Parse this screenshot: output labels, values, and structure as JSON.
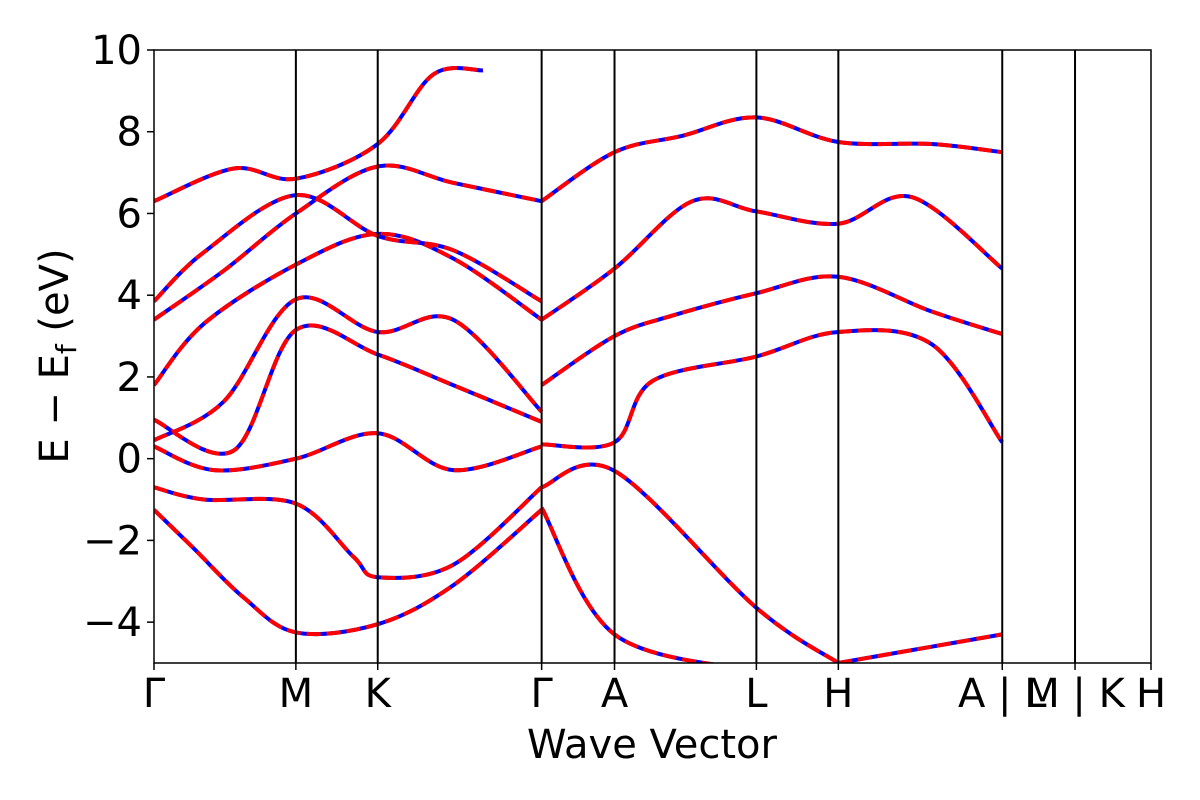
{
  "chart_data": {
    "type": "line",
    "title": "",
    "xlabel": "Wave Vector",
    "ylabel": "E − E_f (eV)",
    "ylabel_main": "E − E",
    "ylabel_sub": "f",
    "ylabel_unit": " (eV)",
    "ylim": [
      -5,
      10
    ],
    "yticks": [
      -4,
      -2,
      0,
      2,
      4,
      6,
      8,
      10
    ],
    "ytick_labels": [
      "−4",
      "−2",
      "0",
      "2",
      "4",
      "6",
      "8",
      "10"
    ],
    "xlim": [
      0,
      1
    ],
    "xticks": [
      {
        "label": "Γ",
        "x": 0.0
      },
      {
        "label": "M",
        "x": 0.1423
      },
      {
        "label": "K",
        "x": 0.2244
      },
      {
        "label": "Γ",
        "x": 0.3888
      },
      {
        "label": "A",
        "x": 0.4619
      },
      {
        "label": "L",
        "x": 0.6042
      },
      {
        "label": "H",
        "x": 0.6864
      },
      {
        "label": "A | L",
        "x": 0.8508
      },
      {
        "label": "M | K",
        "x": 0.9238
      },
      {
        "label": "H",
        "x": 1.0
      }
    ],
    "grid": false,
    "legend": "none",
    "colors": {
      "series_primary": "#0000ff",
      "series_overlay": "#ff0000",
      "axes": "#000000"
    },
    "series": [
      {
        "values": [
          [
            0,
            -1.25
          ],
          [
            0.04,
            -2.2
          ],
          [
            0.09,
            -3.4
          ],
          [
            0.1423,
            -4.25
          ],
          [
            0.2244,
            -4.05
          ],
          [
            0.3,
            -3.1
          ],
          [
            0.3888,
            -1.25
          ]
        ]
      },
      {
        "values": [
          [
            0,
            -0.7
          ],
          [
            0.05,
            -1.0
          ],
          [
            0.1423,
            -1.1
          ],
          [
            0.2,
            -2.4
          ],
          [
            0.2244,
            -2.9
          ],
          [
            0.3,
            -2.6
          ],
          [
            0.3888,
            -0.7
          ]
        ]
      },
      {
        "values": [
          [
            0,
            0.3
          ],
          [
            0.06,
            -0.28
          ],
          [
            0.1423,
            0.0
          ],
          [
            0.2244,
            0.62
          ],
          [
            0.3,
            -0.28
          ],
          [
            0.3888,
            0.3
          ]
        ]
      },
      {
        "values": [
          [
            0,
            0.95
          ],
          [
            0.08,
            0.2
          ],
          [
            0.1423,
            3.15
          ],
          [
            0.2244,
            2.55
          ],
          [
            0.3,
            1.8
          ],
          [
            0.3888,
            0.9
          ]
        ]
      },
      {
        "values": [
          [
            0,
            0.45
          ],
          [
            0.07,
            1.4
          ],
          [
            0.1423,
            3.9
          ],
          [
            0.2244,
            3.1
          ],
          [
            0.3,
            3.4
          ],
          [
            0.3888,
            1.15
          ]
        ]
      },
      {
        "values": [
          [
            0,
            1.8
          ],
          [
            0.05,
            3.3
          ],
          [
            0.1423,
            4.75
          ],
          [
            0.2244,
            5.5
          ],
          [
            0.3,
            4.9
          ],
          [
            0.3888,
            3.4
          ]
        ]
      },
      {
        "values": [
          [
            0,
            3.4
          ],
          [
            0.07,
            4.6
          ],
          [
            0.1423,
            6.0
          ],
          [
            0.2244,
            7.15
          ],
          [
            0.3,
            6.75
          ],
          [
            0.3888,
            6.3
          ]
        ]
      },
      {
        "values": [
          [
            0,
            3.85
          ],
          [
            0.05,
            5.05
          ],
          [
            0.1423,
            6.45
          ],
          [
            0.2244,
            5.45
          ],
          [
            0.3,
            5.1
          ],
          [
            0.3888,
            3.85
          ]
        ]
      },
      {
        "values": [
          [
            0,
            6.3
          ],
          [
            0.08,
            7.1
          ],
          [
            0.1423,
            6.85
          ],
          [
            0.2244,
            7.7
          ],
          [
            0.28,
            9.4
          ],
          [
            0.33,
            9.5
          ]
        ]
      },
      {
        "values": [
          [
            0.3888,
            -0.7
          ],
          [
            0.4619,
            -0.3
          ],
          [
            0.6042,
            -3.65
          ],
          [
            0.6864,
            -5.0
          ]
        ]
      },
      {
        "values": [
          [
            0.3888,
            0.35
          ],
          [
            0.4619,
            0.4
          ],
          [
            0.5,
            1.9
          ],
          [
            0.6042,
            2.5
          ],
          [
            0.6864,
            3.1
          ],
          [
            0.78,
            2.8
          ],
          [
            0.8508,
            0.4
          ]
        ]
      },
      {
        "values": [
          [
            0.3888,
            1.8
          ],
          [
            0.4619,
            3.0
          ],
          [
            0.52,
            3.5
          ],
          [
            0.6042,
            4.05
          ],
          [
            0.6864,
            4.45
          ],
          [
            0.78,
            3.6
          ],
          [
            0.8508,
            3.05
          ]
        ]
      },
      {
        "values": [
          [
            0.3888,
            3.4
          ],
          [
            0.4619,
            4.65
          ],
          [
            0.54,
            6.3
          ],
          [
            0.6042,
            6.05
          ],
          [
            0.6864,
            5.75
          ],
          [
            0.76,
            6.4
          ],
          [
            0.8508,
            4.65
          ]
        ]
      },
      {
        "values": [
          [
            0.3888,
            6.3
          ],
          [
            0.4619,
            7.5
          ],
          [
            0.53,
            7.9
          ],
          [
            0.6042,
            8.35
          ],
          [
            0.6864,
            7.75
          ],
          [
            0.78,
            7.7
          ],
          [
            0.8508,
            7.5
          ]
        ]
      },
      {
        "values": [
          [
            0.3888,
            -1.2
          ],
          [
            0.4619,
            -4.3
          ],
          [
            0.6042,
            -5.2
          ]
        ]
      },
      {
        "values": [
          [
            0.6864,
            -5.0
          ],
          [
            0.78,
            -4.6
          ],
          [
            0.8508,
            -4.3
          ]
        ]
      }
    ]
  }
}
